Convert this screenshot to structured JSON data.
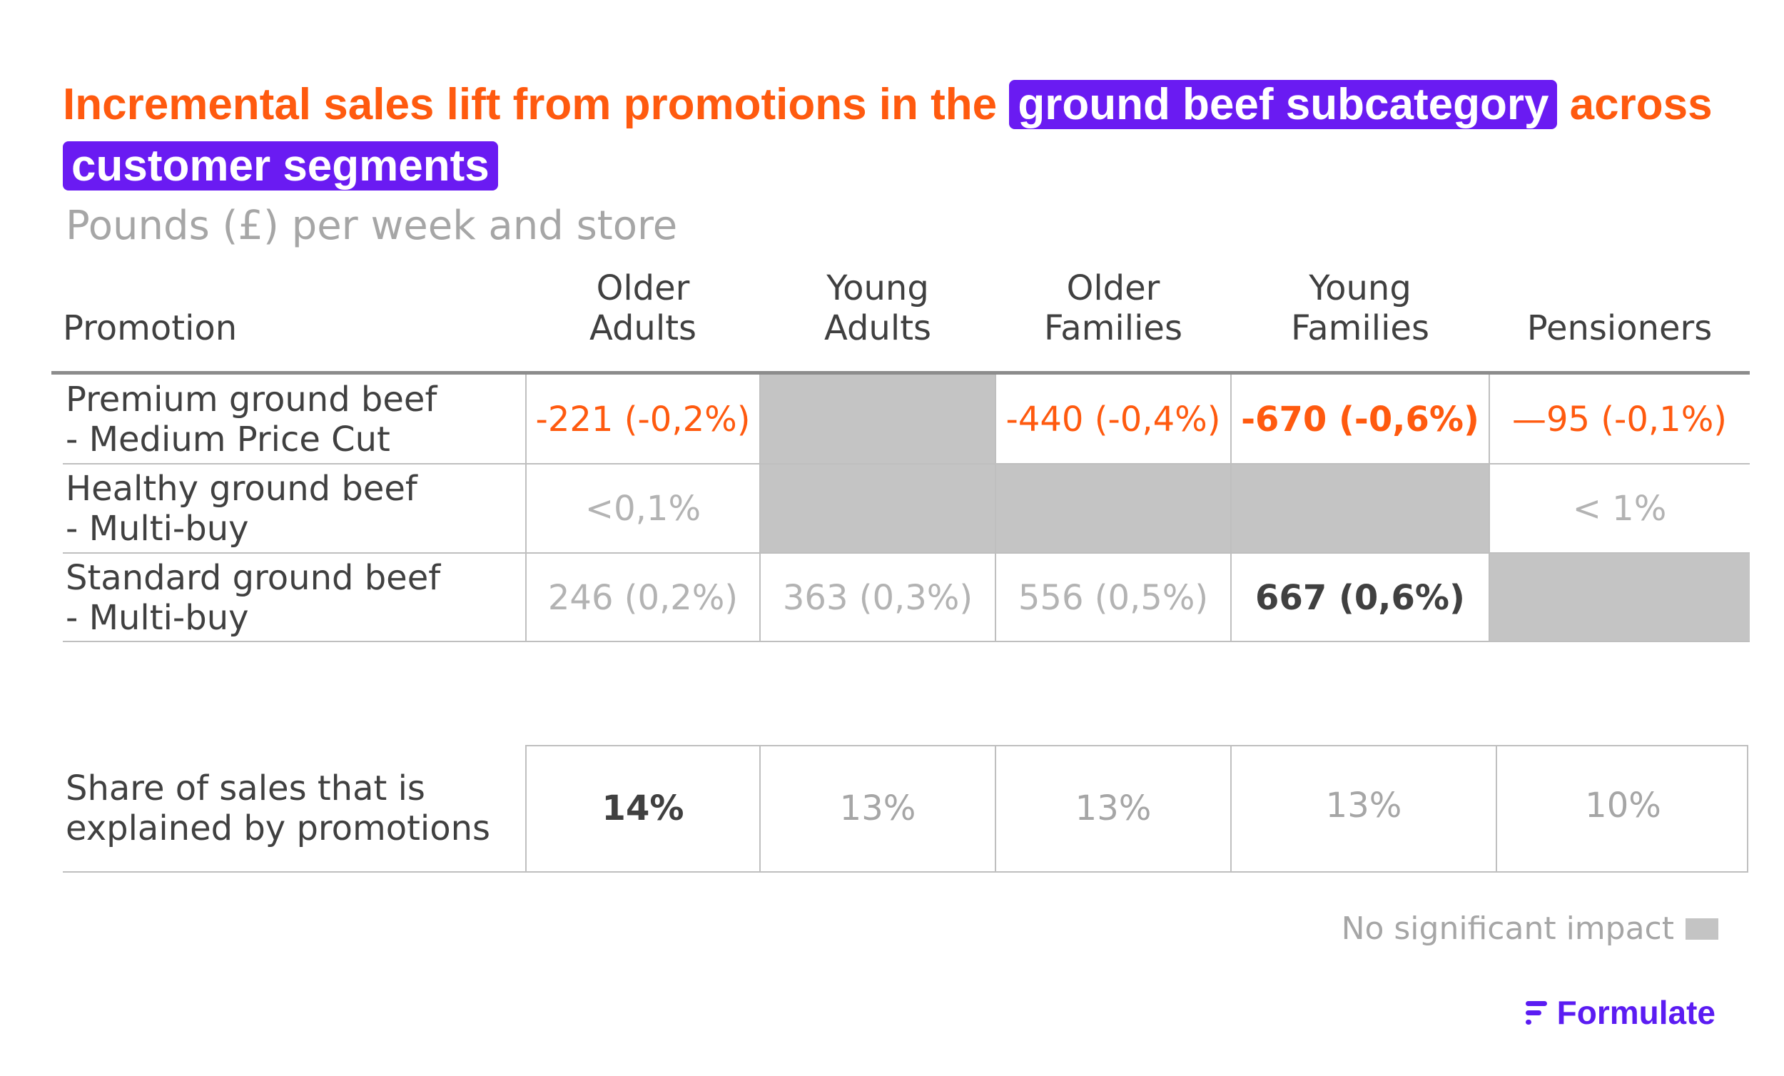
{
  "title": {
    "part1": "Incremental sales lift from promotions in the ",
    "highlight1": "ground beef subcategory",
    "part2": " across ",
    "highlight2": "customer segments"
  },
  "subtitle": "Pounds (£) per week and store",
  "columns": {
    "promotion": "Promotion",
    "older_adults": [
      "Older",
      "Adults"
    ],
    "young_adults": [
      "Young",
      "Adults"
    ],
    "older_families": [
      "Older",
      "Families"
    ],
    "young_families": [
      "Young",
      "Families"
    ],
    "pensioners": "Pensioners"
  },
  "rows": [
    {
      "label": [
        "Premium ground beef",
        "- Medium Price Cut"
      ],
      "cells": [
        "-221 (-0,2%)",
        "",
        "-440 (-0,4%)",
        "-670 (-0,6%)",
        "—95 (-0,1%)"
      ]
    },
    {
      "label": [
        "Healthy ground beef",
        "- Multi-buy"
      ],
      "cells": [
        "<0,1%",
        "",
        "",
        "",
        "< 1%"
      ]
    },
    {
      "label": [
        "Standard ground beef",
        "- Multi-buy"
      ],
      "cells": [
        "246 (0,2%)",
        "363 (0,3%)",
        "556 (0,5%)",
        "667 (0,6%)",
        ""
      ]
    }
  ],
  "share_row": {
    "label": [
      "Share of sales that is",
      "explained by promotions"
    ],
    "cells": [
      "14%",
      "13%",
      "13%",
      "13%",
      "10%"
    ]
  },
  "legend": {
    "label": "No significant impact",
    "color": "#c4c4c4"
  },
  "logo": {
    "text": "Formulate",
    "color": "#5B1CF2"
  },
  "colors": {
    "accent": "#FF5A0F",
    "highlight": "#6A1BF2",
    "no_impact": "#c4c4c4"
  },
  "chart_data": {
    "type": "table",
    "title": "Incremental sales lift from promotions in the ground beef subcategory across customer segments",
    "subtitle": "Pounds (£) per week and store",
    "columns": [
      "Promotion",
      "Older Adults",
      "Young Adults",
      "Older Families",
      "Young Families",
      "Pensioners"
    ],
    "rows": [
      [
        "Premium ground beef - Medium Price Cut",
        "-221 (-0,2%)",
        "No significant impact",
        "-440 (-0,4%)",
        "-670 (-0,6%)",
        "—95 (-0,1%)"
      ],
      [
        "Healthy ground beef - Multi-buy",
        "<0,1%",
        "No significant impact",
        "No significant impact",
        "No significant impact",
        "< 1%"
      ],
      [
        "Standard ground beef - Multi-buy",
        "246 (0,2%)",
        "363 (0,3%)",
        "556 (0,5%)",
        "667 (0,6%)",
        "No significant impact"
      ],
      [
        "Share of sales that is explained by promotions",
        "14%",
        "13%",
        "13%",
        "13%",
        "10%"
      ]
    ]
  }
}
